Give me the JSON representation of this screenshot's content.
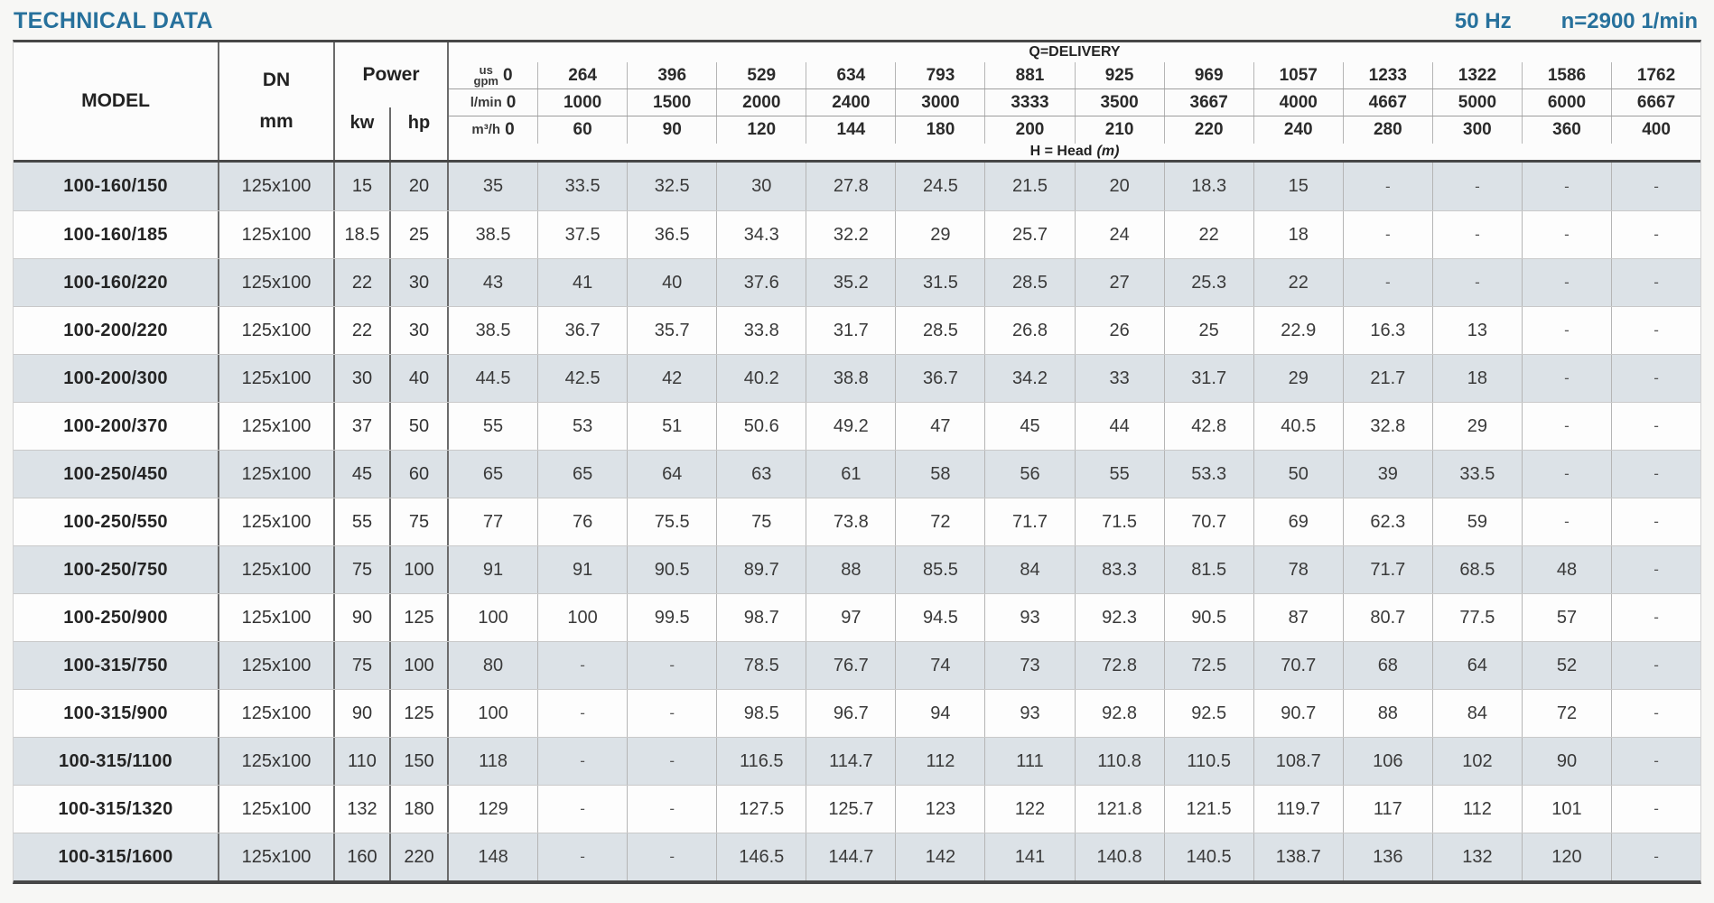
{
  "page": {
    "title": "TECHNICAL DATA",
    "frequency": "50 Hz",
    "speed": "n=2900 1/min",
    "accent_color": "#27719c",
    "stripe_color": "#dce2e7"
  },
  "table": {
    "headers": {
      "model": "MODEL",
      "dn": "DN",
      "dn_unit": "mm",
      "power": "Power",
      "power_kw": "kw",
      "power_hp": "hp"
    },
    "delivery": {
      "title": "Q=DELIVERY",
      "head_label": "H = Head",
      "head_unit": "(m)",
      "unit_rows": [
        {
          "unit": "us\ngpm",
          "values": [
            "0",
            "264",
            "396",
            "529",
            "634",
            "793",
            "881",
            "925",
            "969",
            "1057",
            "1233",
            "1322",
            "1586",
            "1762"
          ]
        },
        {
          "unit": "l/min",
          "values": [
            "0",
            "1000",
            "1500",
            "2000",
            "2400",
            "3000",
            "3333",
            "3500",
            "3667",
            "4000",
            "4667",
            "5000",
            "6000",
            "6667"
          ]
        },
        {
          "unit": "m³/h",
          "values": [
            "0",
            "60",
            "90",
            "120",
            "144",
            "180",
            "200",
            "210",
            "220",
            "240",
            "280",
            "300",
            "360",
            "400"
          ]
        }
      ]
    },
    "rows": [
      {
        "model": "100-160/150",
        "dn": "125x100",
        "kw": "15",
        "hp": "20",
        "head": [
          "35",
          "33.5",
          "32.5",
          "30",
          "27.8",
          "24.5",
          "21.5",
          "20",
          "18.3",
          "15",
          "-",
          "-",
          "-",
          "-"
        ]
      },
      {
        "model": "100-160/185",
        "dn": "125x100",
        "kw": "18.5",
        "hp": "25",
        "head": [
          "38.5",
          "37.5",
          "36.5",
          "34.3",
          "32.2",
          "29",
          "25.7",
          "24",
          "22",
          "18",
          "-",
          "-",
          "-",
          "-"
        ]
      },
      {
        "model": "100-160/220",
        "dn": "125x100",
        "kw": "22",
        "hp": "30",
        "head": [
          "43",
          "41",
          "40",
          "37.6",
          "35.2",
          "31.5",
          "28.5",
          "27",
          "25.3",
          "22",
          "-",
          "-",
          "-",
          "-"
        ]
      },
      {
        "model": "100-200/220",
        "dn": "125x100",
        "kw": "22",
        "hp": "30",
        "head": [
          "38.5",
          "36.7",
          "35.7",
          "33.8",
          "31.7",
          "28.5",
          "26.8",
          "26",
          "25",
          "22.9",
          "16.3",
          "13",
          "-",
          "-"
        ]
      },
      {
        "model": "100-200/300",
        "dn": "125x100",
        "kw": "30",
        "hp": "40",
        "head": [
          "44.5",
          "42.5",
          "42",
          "40.2",
          "38.8",
          "36.7",
          "34.2",
          "33",
          "31.7",
          "29",
          "21.7",
          "18",
          "-",
          "-"
        ]
      },
      {
        "model": "100-200/370",
        "dn": "125x100",
        "kw": "37",
        "hp": "50",
        "head": [
          "55",
          "53",
          "51",
          "50.6",
          "49.2",
          "47",
          "45",
          "44",
          "42.8",
          "40.5",
          "32.8",
          "29",
          "-",
          "-"
        ]
      },
      {
        "model": "100-250/450",
        "dn": "125x100",
        "kw": "45",
        "hp": "60",
        "head": [
          "65",
          "65",
          "64",
          "63",
          "61",
          "58",
          "56",
          "55",
          "53.3",
          "50",
          "39",
          "33.5",
          "-",
          "-"
        ]
      },
      {
        "model": "100-250/550",
        "dn": "125x100",
        "kw": "55",
        "hp": "75",
        "head": [
          "77",
          "76",
          "75.5",
          "75",
          "73.8",
          "72",
          "71.7",
          "71.5",
          "70.7",
          "69",
          "62.3",
          "59",
          "-",
          "-"
        ]
      },
      {
        "model": "100-250/750",
        "dn": "125x100",
        "kw": "75",
        "hp": "100",
        "head": [
          "91",
          "91",
          "90.5",
          "89.7",
          "88",
          "85.5",
          "84",
          "83.3",
          "81.5",
          "78",
          "71.7",
          "68.5",
          "48",
          "-"
        ]
      },
      {
        "model": "100-250/900",
        "dn": "125x100",
        "kw": "90",
        "hp": "125",
        "head": [
          "100",
          "100",
          "99.5",
          "98.7",
          "97",
          "94.5",
          "93",
          "92.3",
          "90.5",
          "87",
          "80.7",
          "77.5",
          "57",
          "-"
        ]
      },
      {
        "model": "100-315/750",
        "dn": "125x100",
        "kw": "75",
        "hp": "100",
        "head": [
          "80",
          "-",
          "-",
          "78.5",
          "76.7",
          "74",
          "73",
          "72.8",
          "72.5",
          "70.7",
          "68",
          "64",
          "52",
          "-"
        ]
      },
      {
        "model": "100-315/900",
        "dn": "125x100",
        "kw": "90",
        "hp": "125",
        "head": [
          "100",
          "-",
          "-",
          "98.5",
          "96.7",
          "94",
          "93",
          "92.8",
          "92.5",
          "90.7",
          "88",
          "84",
          "72",
          "-"
        ]
      },
      {
        "model": "100-315/1100",
        "dn": "125x100",
        "kw": "110",
        "hp": "150",
        "head": [
          "118",
          "-",
          "-",
          "116.5",
          "114.7",
          "112",
          "111",
          "110.8",
          "110.5",
          "108.7",
          "106",
          "102",
          "90",
          "-"
        ]
      },
      {
        "model": "100-315/1320",
        "dn": "125x100",
        "kw": "132",
        "hp": "180",
        "head": [
          "129",
          "-",
          "-",
          "127.5",
          "125.7",
          "123",
          "122",
          "121.8",
          "121.5",
          "119.7",
          "117",
          "112",
          "101",
          "-"
        ]
      },
      {
        "model": "100-315/1600",
        "dn": "125x100",
        "kw": "160",
        "hp": "220",
        "head": [
          "148",
          "-",
          "-",
          "146.5",
          "144.7",
          "142",
          "141",
          "140.8",
          "140.5",
          "138.7",
          "136",
          "132",
          "120",
          "-"
        ]
      }
    ]
  }
}
